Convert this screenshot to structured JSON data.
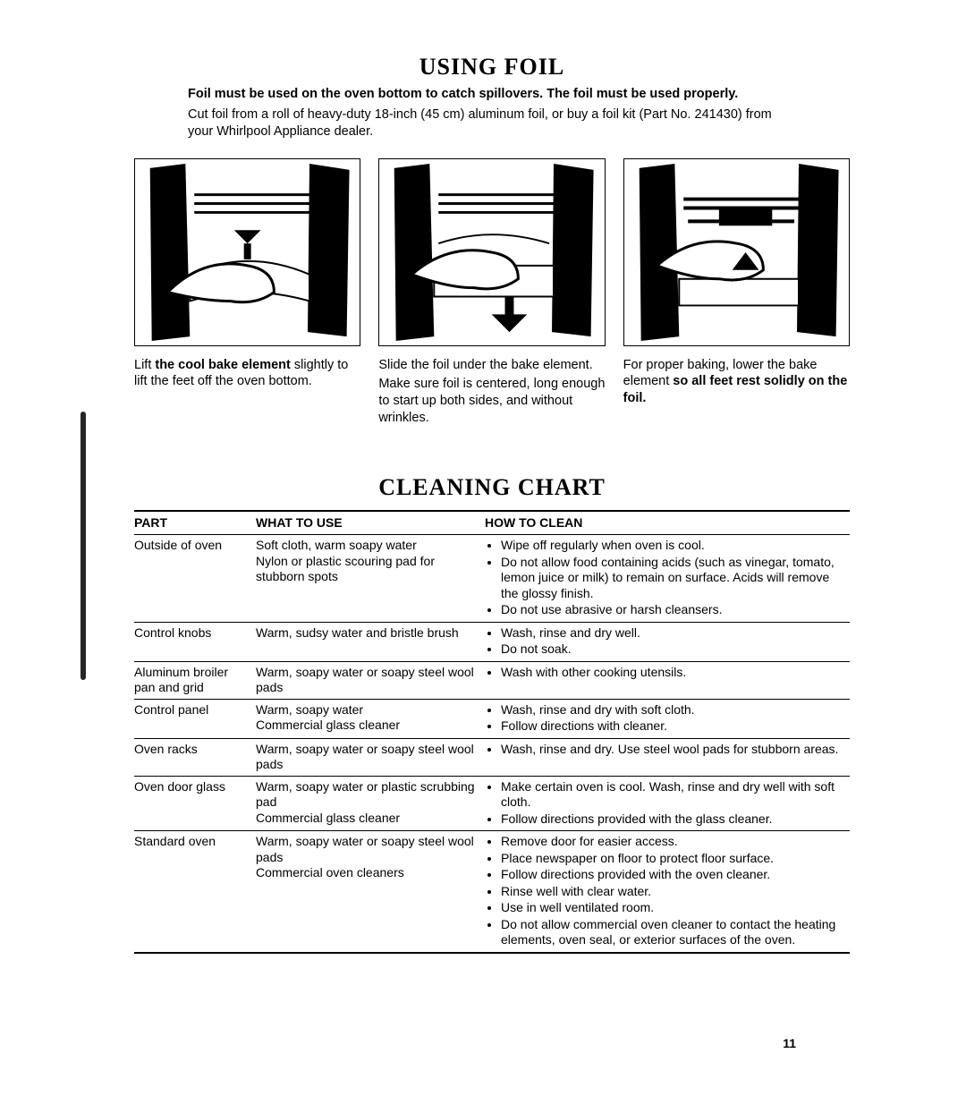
{
  "section1": {
    "title": "USING FOIL",
    "intro_bold": "Foil must be used on the oven bottom to catch spillovers. The foil must be used properly.",
    "intro_text": "Cut foil from a roll of heavy-duty 18-inch (45 cm) aluminum foil, or buy a foil kit (Part No. 241430) from your Whirlpool Appliance dealer.",
    "captions": [
      {
        "line1_pre": "Lift ",
        "line1_bold": "the cool bake element",
        "line1_post": " slightly to lift the feet off the oven bottom."
      },
      {
        "line1": "Slide the foil under the bake element.",
        "line2": "Make sure foil is centered, long enough to start up both sides, and without wrinkles."
      },
      {
        "line1_pre": "For proper baking, lower the bake element ",
        "line1_bold": "so all feet rest solidly on the foil."
      }
    ]
  },
  "section2": {
    "title": "CLEANING CHART",
    "headers": {
      "part": "PART",
      "use": "WHAT TO USE",
      "how": "HOW TO CLEAN"
    },
    "rows": [
      {
        "part": "Outside of oven",
        "use": "Soft cloth, warm soapy water\nNylon or plastic scouring pad for stubborn spots",
        "how": [
          "Wipe off regularly when oven is cool.",
          "Do not allow food containing acids (such as vinegar, tomato, lemon juice or milk) to remain on surface. Acids will remove the glossy finish.",
          "Do not use abrasive or harsh cleansers."
        ]
      },
      {
        "part": "Control knobs",
        "use": "Warm, sudsy water and bristle brush",
        "how": [
          "Wash, rinse and dry well.",
          "Do not soak."
        ]
      },
      {
        "part": "Aluminum broiler pan and grid",
        "use": "Warm, soapy water or soapy steel wool pads",
        "how": [
          "Wash with other cooking utensils."
        ]
      },
      {
        "part": "Control panel",
        "use": "Warm, soapy water\nCommercial glass cleaner",
        "how": [
          "Wash, rinse and dry with soft cloth.",
          "Follow directions with cleaner."
        ]
      },
      {
        "part": "Oven racks",
        "use": "Warm, soapy water or soapy steel wool pads",
        "how": [
          "Wash, rinse and dry. Use steel wool pads for stubborn areas."
        ]
      },
      {
        "part": "Oven door glass",
        "use": "Warm, soapy water or plastic scrubbing pad\nCommercial glass cleaner",
        "how": [
          "Make certain oven is cool. Wash, rinse and dry well with soft cloth.",
          "Follow directions provided with the glass cleaner."
        ]
      },
      {
        "part": "Standard oven",
        "use": "Warm, soapy water or soapy steel wool pads\nCommercial oven cleaners",
        "how": [
          "Remove door for easier access.",
          "Place newspaper on floor to protect floor surface.",
          "Follow directions provided with the oven cleaner.",
          "Rinse well with clear water.",
          "Use in well ventilated room.",
          "Do not allow commercial oven cleaner to contact the heating elements, oven seal, or exterior surfaces of the oven."
        ]
      }
    ]
  },
  "page_number": "11"
}
